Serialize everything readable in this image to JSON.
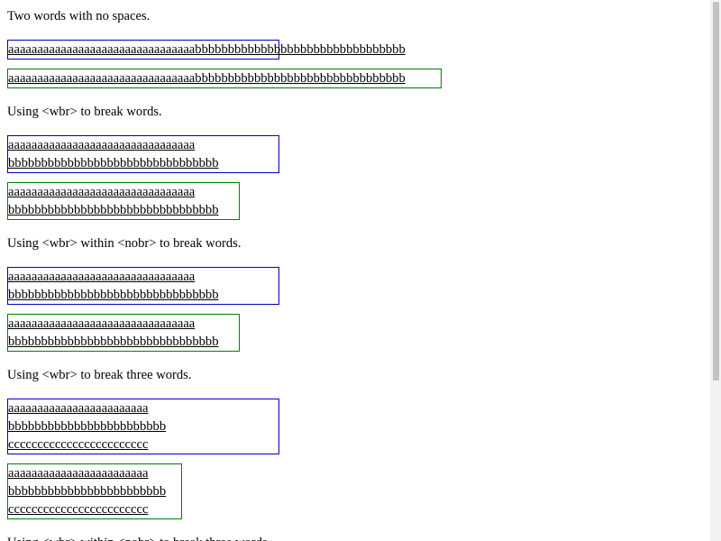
{
  "sections": [
    {
      "heading": "Two words with no spaces.",
      "box1": {
        "lines": [
          "aaaaaaaaaaaaaaaaaaaaaaaaaaaaaaaabbbbbbbbbbbbbbbbbbbbbbbbbbbbbbbb"
        ]
      },
      "box2": {
        "lines": [
          "aaaaaaaaaaaaaaaaaaaaaaaaaaaaaaaabbbbbbbbbbbbbbbbbbbbbbbbbbbbbbbb"
        ]
      }
    },
    {
      "heading": "Using <wbr> to break words.",
      "box1": {
        "lines": [
          "aaaaaaaaaaaaaaaaaaaaaaaaaaaaaaaa",
          "bbbbbbbbbbbbbbbbbbbbbbbbbbbbbbbb"
        ]
      },
      "box2": {
        "lines": [
          "aaaaaaaaaaaaaaaaaaaaaaaaaaaaaaaa",
          "bbbbbbbbbbbbbbbbbbbbbbbbbbbbbbbb"
        ]
      }
    },
    {
      "heading": "Using <wbr> within <nobr> to break words.",
      "box1": {
        "lines": [
          "aaaaaaaaaaaaaaaaaaaaaaaaaaaaaaaa",
          "bbbbbbbbbbbbbbbbbbbbbbbbbbbbbbbb"
        ]
      },
      "box2": {
        "lines": [
          "aaaaaaaaaaaaaaaaaaaaaaaaaaaaaaaa",
          "bbbbbbbbbbbbbbbbbbbbbbbbbbbbbbbb"
        ]
      }
    },
    {
      "heading": "Using <wbr> to break three words.",
      "box1": {
        "lines": [
          "aaaaaaaaaaaaaaaaaaaaaaaa",
          "bbbbbbbbbbbbbbbbbbbbbbbb",
          "cccccccccccccccccccccccc"
        ]
      },
      "box2": {
        "lines": [
          "aaaaaaaaaaaaaaaaaaaaaaaa",
          "bbbbbbbbbbbbbbbbbbbbbbbb",
          "cccccccccccccccccccccccc"
        ]
      }
    },
    {
      "heading": "Using <wbr> within <nobr> to break three words."
    }
  ],
  "colors": {
    "box1_border": "#0000c8",
    "box2_border": "#008000",
    "scrollbar_track": "#f2f2f2",
    "scrollbar_thumb": "#c2c2c2"
  }
}
